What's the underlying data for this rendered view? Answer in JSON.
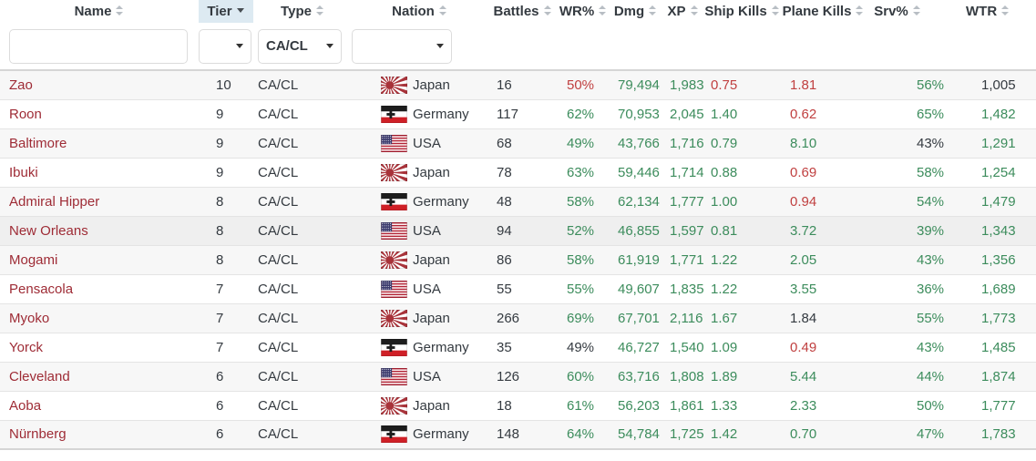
{
  "header": {
    "columns": [
      {
        "key": "name",
        "label": "Name",
        "sort": "both",
        "active": false
      },
      {
        "key": "tier",
        "label": "Tier",
        "sort": "desc",
        "active": true
      },
      {
        "key": "type",
        "label": "Type",
        "sort": "both",
        "active": false
      },
      {
        "key": "nation",
        "label": "Nation",
        "sort": "both",
        "active": false
      },
      {
        "key": "battles",
        "label": "Battles",
        "sort": "both",
        "active": false
      },
      {
        "key": "wr",
        "label": "WR%",
        "sort": "both",
        "active": false
      },
      {
        "key": "dmg",
        "label": "Dmg",
        "sort": "both",
        "active": false
      },
      {
        "key": "xp",
        "label": "XP",
        "sort": "both",
        "active": false
      },
      {
        "key": "ship_kills",
        "label": "Ship Kills",
        "sort": "both",
        "active": false
      },
      {
        "key": "plane_kills",
        "label": "Plane Kills",
        "sort": "both",
        "active": false
      },
      {
        "key": "srv",
        "label": "Srv%",
        "sort": "both",
        "active": false
      },
      {
        "key": "wtr",
        "label": "WTR",
        "sort": "both",
        "active": false
      }
    ]
  },
  "filters": {
    "name": {
      "value": "",
      "placeholder": ""
    },
    "tier": {
      "value": ""
    },
    "type": {
      "value": "CA/CL"
    },
    "nation": {
      "value": ""
    }
  },
  "colors": {
    "good": "#3c8c5c",
    "bad": "#c04040",
    "neutral": "#343a40",
    "ship_name": "#9e2b35",
    "active_sort_bg": "#ddeaf2"
  },
  "rows": [
    {
      "name": "Zao",
      "tier": "10",
      "type": "CA/CL",
      "nation": "Japan",
      "flag": "japan",
      "highlighted": false,
      "stats": {
        "battles": {
          "v": "16",
          "tone": "neutral"
        },
        "wr": {
          "v": "50%",
          "tone": "bad"
        },
        "dmg": {
          "v": "79,494",
          "tone": "good"
        },
        "xp": {
          "v": "1,983",
          "tone": "good"
        },
        "ship_kills": {
          "v": "0.75",
          "tone": "bad"
        },
        "plane_kills": {
          "v": "1.81",
          "tone": "bad"
        },
        "srv": {
          "v": "56%",
          "tone": "good"
        },
        "wtr": {
          "v": "1,005",
          "tone": "neutral"
        }
      }
    },
    {
      "name": "Roon",
      "tier": "9",
      "type": "CA/CL",
      "nation": "Germany",
      "flag": "germany",
      "highlighted": false,
      "stats": {
        "battles": {
          "v": "117",
          "tone": "neutral"
        },
        "wr": {
          "v": "62%",
          "tone": "good"
        },
        "dmg": {
          "v": "70,953",
          "tone": "good"
        },
        "xp": {
          "v": "2,045",
          "tone": "good"
        },
        "ship_kills": {
          "v": "1.40",
          "tone": "good"
        },
        "plane_kills": {
          "v": "0.62",
          "tone": "bad"
        },
        "srv": {
          "v": "65%",
          "tone": "good"
        },
        "wtr": {
          "v": "1,482",
          "tone": "good"
        }
      }
    },
    {
      "name": "Baltimore",
      "tier": "9",
      "type": "CA/CL",
      "nation": "USA",
      "flag": "usa",
      "highlighted": false,
      "stats": {
        "battles": {
          "v": "68",
          "tone": "neutral"
        },
        "wr": {
          "v": "49%",
          "tone": "good"
        },
        "dmg": {
          "v": "43,766",
          "tone": "good"
        },
        "xp": {
          "v": "1,716",
          "tone": "good"
        },
        "ship_kills": {
          "v": "0.79",
          "tone": "good"
        },
        "plane_kills": {
          "v": "8.10",
          "tone": "good"
        },
        "srv": {
          "v": "43%",
          "tone": "neutral"
        },
        "wtr": {
          "v": "1,291",
          "tone": "good"
        }
      }
    },
    {
      "name": "Ibuki",
      "tier": "9",
      "type": "CA/CL",
      "nation": "Japan",
      "flag": "japan",
      "highlighted": false,
      "stats": {
        "battles": {
          "v": "78",
          "tone": "neutral"
        },
        "wr": {
          "v": "63%",
          "tone": "good"
        },
        "dmg": {
          "v": "59,446",
          "tone": "good"
        },
        "xp": {
          "v": "1,714",
          "tone": "good"
        },
        "ship_kills": {
          "v": "0.88",
          "tone": "good"
        },
        "plane_kills": {
          "v": "0.69",
          "tone": "bad"
        },
        "srv": {
          "v": "58%",
          "tone": "good"
        },
        "wtr": {
          "v": "1,254",
          "tone": "good"
        }
      }
    },
    {
      "name": "Admiral Hipper",
      "tier": "8",
      "type": "CA/CL",
      "nation": "Germany",
      "flag": "germany",
      "highlighted": false,
      "stats": {
        "battles": {
          "v": "48",
          "tone": "neutral"
        },
        "wr": {
          "v": "58%",
          "tone": "good"
        },
        "dmg": {
          "v": "62,134",
          "tone": "good"
        },
        "xp": {
          "v": "1,777",
          "tone": "good"
        },
        "ship_kills": {
          "v": "1.00",
          "tone": "good"
        },
        "plane_kills": {
          "v": "0.94",
          "tone": "bad"
        },
        "srv": {
          "v": "54%",
          "tone": "good"
        },
        "wtr": {
          "v": "1,479",
          "tone": "good"
        }
      }
    },
    {
      "name": "New Orleans",
      "tier": "8",
      "type": "CA/CL",
      "nation": "USA",
      "flag": "usa",
      "highlighted": true,
      "stats": {
        "battles": {
          "v": "94",
          "tone": "neutral"
        },
        "wr": {
          "v": "52%",
          "tone": "good"
        },
        "dmg": {
          "v": "46,855",
          "tone": "good"
        },
        "xp": {
          "v": "1,597",
          "tone": "good"
        },
        "ship_kills": {
          "v": "0.81",
          "tone": "good"
        },
        "plane_kills": {
          "v": "3.72",
          "tone": "good"
        },
        "srv": {
          "v": "39%",
          "tone": "good"
        },
        "wtr": {
          "v": "1,343",
          "tone": "good"
        }
      }
    },
    {
      "name": "Mogami",
      "tier": "8",
      "type": "CA/CL",
      "nation": "Japan",
      "flag": "japan",
      "highlighted": false,
      "stats": {
        "battles": {
          "v": "86",
          "tone": "neutral"
        },
        "wr": {
          "v": "58%",
          "tone": "good"
        },
        "dmg": {
          "v": "61,919",
          "tone": "good"
        },
        "xp": {
          "v": "1,771",
          "tone": "good"
        },
        "ship_kills": {
          "v": "1.22",
          "tone": "good"
        },
        "plane_kills": {
          "v": "2.05",
          "tone": "good"
        },
        "srv": {
          "v": "43%",
          "tone": "good"
        },
        "wtr": {
          "v": "1,356",
          "tone": "good"
        }
      }
    },
    {
      "name": "Pensacola",
      "tier": "7",
      "type": "CA/CL",
      "nation": "USA",
      "flag": "usa",
      "highlighted": false,
      "stats": {
        "battles": {
          "v": "55",
          "tone": "neutral"
        },
        "wr": {
          "v": "55%",
          "tone": "good"
        },
        "dmg": {
          "v": "49,607",
          "tone": "good"
        },
        "xp": {
          "v": "1,835",
          "tone": "good"
        },
        "ship_kills": {
          "v": "1.22",
          "tone": "good"
        },
        "plane_kills": {
          "v": "3.55",
          "tone": "good"
        },
        "srv": {
          "v": "36%",
          "tone": "good"
        },
        "wtr": {
          "v": "1,689",
          "tone": "good"
        }
      }
    },
    {
      "name": "Myoko",
      "tier": "7",
      "type": "CA/CL",
      "nation": "Japan",
      "flag": "japan",
      "highlighted": false,
      "stats": {
        "battles": {
          "v": "266",
          "tone": "neutral"
        },
        "wr": {
          "v": "69%",
          "tone": "good"
        },
        "dmg": {
          "v": "67,701",
          "tone": "good"
        },
        "xp": {
          "v": "2,116",
          "tone": "good"
        },
        "ship_kills": {
          "v": "1.67",
          "tone": "good"
        },
        "plane_kills": {
          "v": "1.84",
          "tone": "neutral"
        },
        "srv": {
          "v": "55%",
          "tone": "good"
        },
        "wtr": {
          "v": "1,773",
          "tone": "good"
        }
      }
    },
    {
      "name": "Yorck",
      "tier": "7",
      "type": "CA/CL",
      "nation": "Germany",
      "flag": "germany",
      "highlighted": false,
      "stats": {
        "battles": {
          "v": "35",
          "tone": "neutral"
        },
        "wr": {
          "v": "49%",
          "tone": "neutral"
        },
        "dmg": {
          "v": "46,727",
          "tone": "good"
        },
        "xp": {
          "v": "1,540",
          "tone": "good"
        },
        "ship_kills": {
          "v": "1.09",
          "tone": "good"
        },
        "plane_kills": {
          "v": "0.49",
          "tone": "bad"
        },
        "srv": {
          "v": "43%",
          "tone": "good"
        },
        "wtr": {
          "v": "1,485",
          "tone": "good"
        }
      }
    },
    {
      "name": "Cleveland",
      "tier": "6",
      "type": "CA/CL",
      "nation": "USA",
      "flag": "usa",
      "highlighted": false,
      "stats": {
        "battles": {
          "v": "126",
          "tone": "neutral"
        },
        "wr": {
          "v": "60%",
          "tone": "good"
        },
        "dmg": {
          "v": "63,716",
          "tone": "good"
        },
        "xp": {
          "v": "1,808",
          "tone": "good"
        },
        "ship_kills": {
          "v": "1.89",
          "tone": "good"
        },
        "plane_kills": {
          "v": "5.44",
          "tone": "good"
        },
        "srv": {
          "v": "44%",
          "tone": "good"
        },
        "wtr": {
          "v": "1,874",
          "tone": "good"
        }
      }
    },
    {
      "name": "Aoba",
      "tier": "6",
      "type": "CA/CL",
      "nation": "Japan",
      "flag": "japan",
      "highlighted": false,
      "stats": {
        "battles": {
          "v": "18",
          "tone": "neutral"
        },
        "wr": {
          "v": "61%",
          "tone": "good"
        },
        "dmg": {
          "v": "56,203",
          "tone": "good"
        },
        "xp": {
          "v": "1,861",
          "tone": "good"
        },
        "ship_kills": {
          "v": "1.33",
          "tone": "good"
        },
        "plane_kills": {
          "v": "2.33",
          "tone": "good"
        },
        "srv": {
          "v": "50%",
          "tone": "good"
        },
        "wtr": {
          "v": "1,777",
          "tone": "good"
        }
      }
    },
    {
      "name": "Nürnberg",
      "tier": "6",
      "type": "CA/CL",
      "nation": "Germany",
      "flag": "germany",
      "highlighted": false,
      "stats": {
        "battles": {
          "v": "148",
          "tone": "neutral"
        },
        "wr": {
          "v": "64%",
          "tone": "good"
        },
        "dmg": {
          "v": "54,784",
          "tone": "good"
        },
        "xp": {
          "v": "1,725",
          "tone": "good"
        },
        "ship_kills": {
          "v": "1.42",
          "tone": "good"
        },
        "plane_kills": {
          "v": "0.70",
          "tone": "good"
        },
        "srv": {
          "v": "47%",
          "tone": "good"
        },
        "wtr": {
          "v": "1,783",
          "tone": "good"
        }
      }
    }
  ]
}
